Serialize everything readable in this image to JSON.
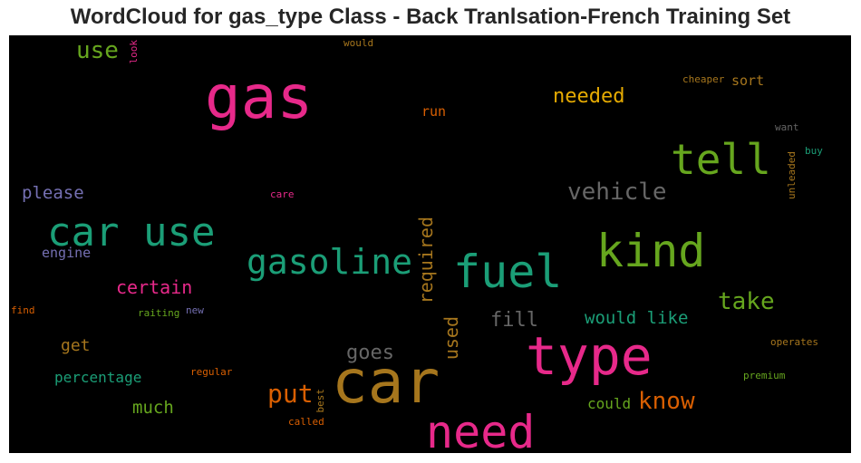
{
  "chart_data": {
    "type": "wordcloud",
    "title": "WordCloud for gas_type Class - Back Tranlsation-French Training Set",
    "background": "#000000",
    "words": [
      {
        "text": "car",
        "weight": 1.0,
        "color": "#a6761d"
      },
      {
        "text": "gas",
        "weight": 0.95,
        "color": "#e7298a"
      },
      {
        "text": "type",
        "weight": 0.85,
        "color": "#e7298a"
      },
      {
        "text": "need",
        "weight": 0.75,
        "color": "#e7298a"
      },
      {
        "text": "kind",
        "weight": 0.72,
        "color": "#66a61e"
      },
      {
        "text": "fuel",
        "weight": 0.72,
        "color": "#1b9e77"
      },
      {
        "text": "car use",
        "weight": 0.62,
        "color": "#1b9e77"
      },
      {
        "text": "tell",
        "weight": 0.6,
        "color": "#66a61e"
      },
      {
        "text": "gasoline",
        "weight": 0.55,
        "color": "#1b9e77"
      },
      {
        "text": "vehicle",
        "weight": 0.38,
        "color": "#666666"
      },
      {
        "text": "put",
        "weight": 0.38,
        "color": "#d95f02"
      },
      {
        "text": "know",
        "weight": 0.36,
        "color": "#d95f02"
      },
      {
        "text": "take",
        "weight": 0.36,
        "color": "#66a61e"
      },
      {
        "text": "use",
        "weight": 0.35,
        "color": "#66a61e"
      },
      {
        "text": "needed",
        "weight": 0.3,
        "color": "#e6ab02"
      },
      {
        "text": "required",
        "weight": 0.28,
        "color": "#a6761d"
      },
      {
        "text": "fill",
        "weight": 0.3,
        "color": "#666666"
      },
      {
        "text": "goes",
        "weight": 0.28,
        "color": "#666666"
      },
      {
        "text": "certain",
        "weight": 0.27,
        "color": "#e7298a"
      },
      {
        "text": "please",
        "weight": 0.26,
        "color": "#7570b3"
      },
      {
        "text": "would like",
        "weight": 0.25,
        "color": "#1b9e77"
      },
      {
        "text": "used",
        "weight": 0.25,
        "color": "#a6761d"
      },
      {
        "text": "much",
        "weight": 0.25,
        "color": "#66a61e"
      },
      {
        "text": "get",
        "weight": 0.24,
        "color": "#a6761d"
      },
      {
        "text": "percentage",
        "weight": 0.2,
        "color": "#1b9e77"
      },
      {
        "text": "could",
        "weight": 0.2,
        "color": "#66a61e"
      },
      {
        "text": "sort",
        "weight": 0.2,
        "color": "#a6761d"
      },
      {
        "text": "run",
        "weight": 0.2,
        "color": "#d95f02"
      },
      {
        "text": "engine",
        "weight": 0.19,
        "color": "#7570b3"
      },
      {
        "text": "cheaper",
        "weight": 0.14,
        "color": "#a6761d"
      },
      {
        "text": "operates",
        "weight": 0.14,
        "color": "#a6761d"
      },
      {
        "text": "premium",
        "weight": 0.14,
        "color": "#66a61e"
      },
      {
        "text": "regular",
        "weight": 0.14,
        "color": "#d95f02"
      },
      {
        "text": "raiting",
        "weight": 0.14,
        "color": "#66a61e"
      },
      {
        "text": "unleaded",
        "weight": 0.14,
        "color": "#a6761d"
      },
      {
        "text": "want",
        "weight": 0.13,
        "color": "#666666"
      },
      {
        "text": "buy",
        "weight": 0.13,
        "color": "#1b9e77"
      },
      {
        "text": "would",
        "weight": 0.13,
        "color": "#a6761d"
      },
      {
        "text": "look",
        "weight": 0.13,
        "color": "#e7298a"
      },
      {
        "text": "care",
        "weight": 0.13,
        "color": "#e7298a"
      },
      {
        "text": "find",
        "weight": 0.13,
        "color": "#d95f02"
      },
      {
        "text": "new",
        "weight": 0.13,
        "color": "#7570b3"
      },
      {
        "text": "best",
        "weight": 0.12,
        "color": "#a6761d"
      },
      {
        "text": "called",
        "weight": 0.12,
        "color": "#d95f02"
      }
    ]
  }
}
